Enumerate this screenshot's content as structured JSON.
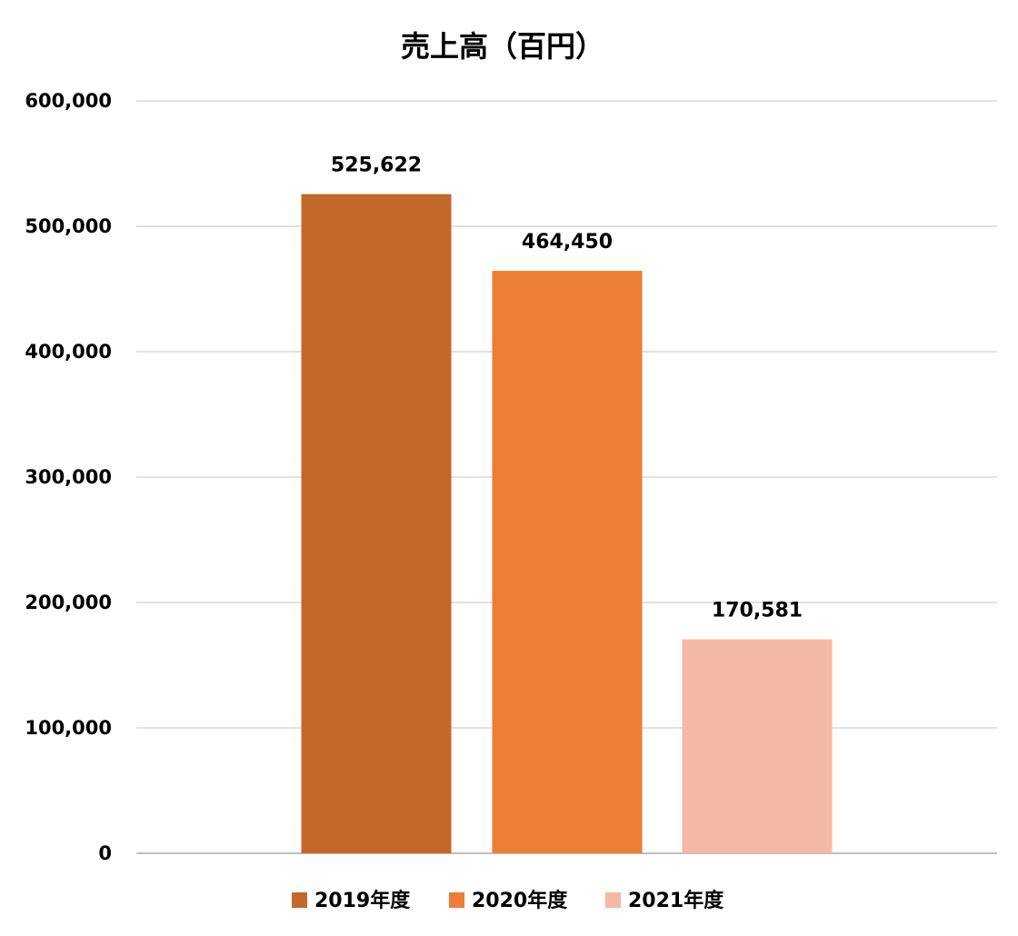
{
  "chart_data": {
    "type": "bar",
    "title": "売上高（百円）",
    "xlabel": "",
    "ylabel": "",
    "ylim": [
      0,
      600000
    ],
    "y_ticks": [
      0,
      100000,
      200000,
      300000,
      400000,
      500000,
      600000
    ],
    "y_tick_labels": [
      "0",
      "100,000",
      "200,000",
      "300,000",
      "400,000",
      "500,000",
      "600,000"
    ],
    "grid": true,
    "legend_position": "bottom",
    "series": [
      {
        "name": "2019年度",
        "value": 525622,
        "label": "525,622",
        "color": "#C4672A"
      },
      {
        "name": "2020年度",
        "value": 464450,
        "label": "464,450",
        "color": "#EB7E34"
      },
      {
        "name": "2021年度",
        "value": 170581,
        "label": "170,581",
        "color": "#F3B8A6"
      }
    ]
  },
  "colors": {
    "gridline": "#D9D9D9",
    "text": "#000000",
    "background": "#FFFFFF"
  }
}
